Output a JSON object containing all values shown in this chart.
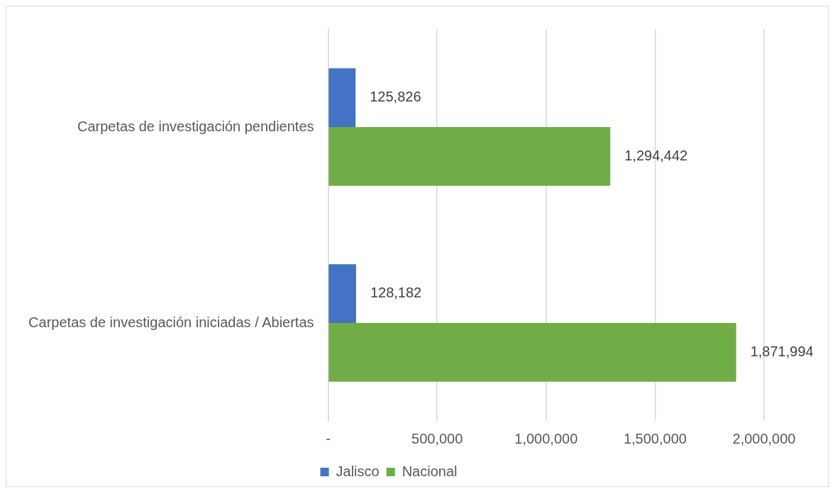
{
  "chart_data": {
    "type": "bar",
    "orientation": "horizontal",
    "categories": [
      "Carpetas de investigación pendientes",
      "Carpetas de investigación iniciadas / Abiertas"
    ],
    "series": [
      {
        "name": "Jalisco",
        "color": "#4472c4",
        "values": [
          125826,
          128182
        ],
        "value_labels": [
          "125,826",
          "128,182"
        ]
      },
      {
        "name": "Nacional",
        "color": "#70ad47",
        "values": [
          1294442,
          1871994
        ],
        "value_labels": [
          "1,294,442",
          "1,871,994"
        ]
      }
    ],
    "xlim": [
      0,
      2000000
    ],
    "xticks": [
      {
        "value": 0,
        "label": "-"
      },
      {
        "value": 500000,
        "label": "500,000"
      },
      {
        "value": 1000000,
        "label": "1,000,000"
      },
      {
        "value": 1500000,
        "label": "1,500,000"
      },
      {
        "value": 2000000,
        "label": "2,000,000"
      }
    ],
    "grid": "x",
    "legend": "bottom"
  }
}
